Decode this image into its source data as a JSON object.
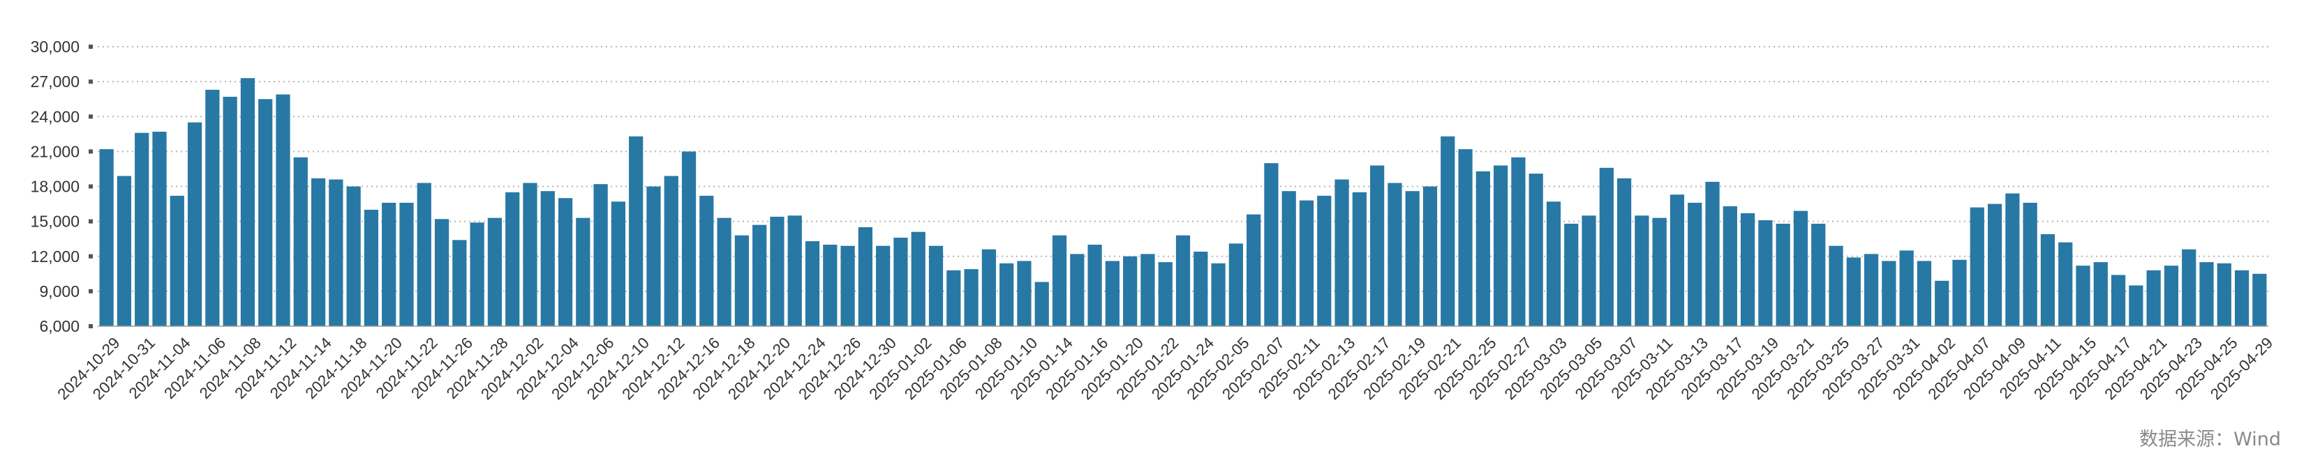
{
  "source": "数据来源：Wind",
  "chart_data": {
    "type": "bar",
    "color": "#2878a5",
    "ylim": [
      6000,
      30000
    ],
    "yticks": [
      6000,
      9000,
      12000,
      15000,
      18000,
      21000,
      24000,
      27000,
      30000
    ],
    "ytick_labels": [
      "6,000",
      "9,000",
      "12,000",
      "15,000",
      "18,000",
      "21,000",
      "24,000",
      "27,000",
      "30,000"
    ],
    "grid": true,
    "tick_labels": [
      "2024-10-29",
      "2024-10-31",
      "2024-11-04",
      "2024-11-06",
      "2024-11-08",
      "2024-11-12",
      "2024-11-14",
      "2024-11-18",
      "2024-11-20",
      "2024-11-22",
      "2024-11-26",
      "2024-11-28",
      "2024-12-02",
      "2024-12-04",
      "2024-12-06",
      "2024-12-10",
      "2024-12-12",
      "2024-12-16",
      "2024-12-18",
      "2024-12-20",
      "2024-12-24",
      "2024-12-26",
      "2024-12-30",
      "2025-01-02",
      "2025-01-06",
      "2025-01-08",
      "2025-01-10",
      "2025-01-14",
      "2025-01-16",
      "2025-01-20",
      "2025-01-22",
      "2025-01-24",
      "2025-02-05",
      "2025-02-07",
      "2025-02-11",
      "2025-02-13",
      "2025-02-17",
      "2025-02-19",
      "2025-02-21",
      "2025-02-25",
      "2025-02-27",
      "2025-03-03",
      "2025-03-05",
      "2025-03-07",
      "2025-03-11",
      "2025-03-13",
      "2025-03-17",
      "2025-03-19",
      "2025-03-21",
      "2025-03-25",
      "2025-03-27",
      "2025-03-31",
      "2025-04-02",
      "2025-04-07",
      "2025-04-09",
      "2025-04-11",
      "2025-04-15",
      "2025-04-17",
      "2025-04-21",
      "2025-04-23",
      "2025-04-25",
      "2025-04-29"
    ],
    "values": [
      21200,
      18900,
      22600,
      22700,
      17200,
      23500,
      26300,
      25700,
      27300,
      25500,
      25900,
      20500,
      18700,
      18600,
      18000,
      16000,
      16600,
      16600,
      18300,
      15200,
      13400,
      14900,
      15300,
      17500,
      18300,
      17600,
      17000,
      15300,
      18200,
      16700,
      22300,
      18000,
      18900,
      21000,
      17200,
      15300,
      13800,
      14700,
      15400,
      15500,
      13300,
      13000,
      12900,
      14500,
      12900,
      13600,
      14100,
      12900,
      10800,
      10900,
      12600,
      11400,
      11600,
      9800,
      13800,
      12200,
      13000,
      11600,
      12000,
      12200,
      11500,
      13800,
      12400,
      11400,
      13100,
      15600,
      20000,
      17600,
      16800,
      17200,
      18600,
      17500,
      19800,
      18300,
      17600,
      18000,
      22300,
      21200,
      19300,
      19800,
      20500,
      19100,
      16700,
      14800,
      15500,
      19600,
      18700,
      15500,
      15300,
      17300,
      16600,
      18400,
      16300,
      15700,
      15100,
      14800,
      15900,
      14800,
      12900,
      11900,
      12200,
      11600,
      12500,
      11600,
      9900,
      11700,
      16200,
      16500,
      17400,
      16600,
      13900,
      13200,
      11200,
      11500,
      10400,
      9500,
      10800,
      11200,
      12600,
      11500,
      11400,
      10800,
      10500
    ]
  }
}
